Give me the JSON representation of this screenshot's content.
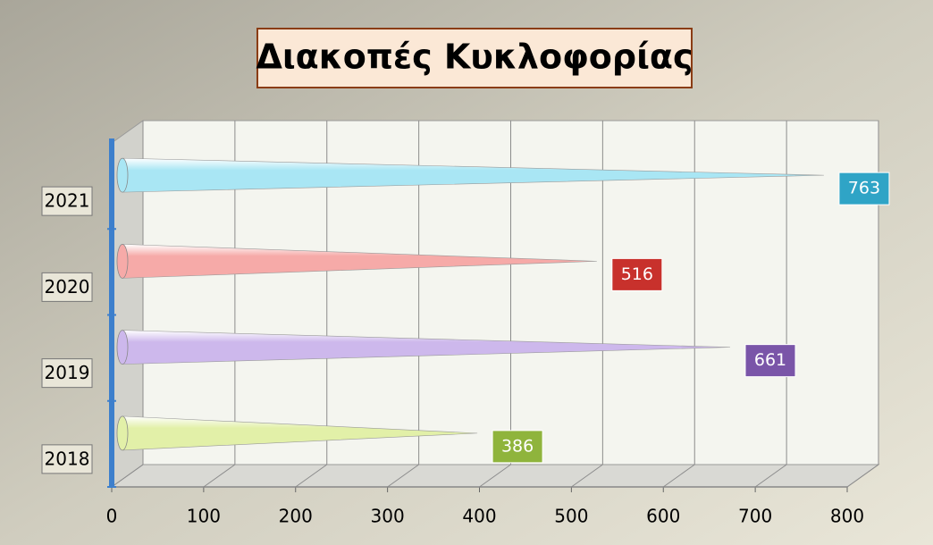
{
  "chart_data": {
    "type": "cone-bar",
    "orientation": "horizontal",
    "title": "Διακοπές Κυκλοφορίας",
    "categories": [
      "2018",
      "2019",
      "2020",
      "2021"
    ],
    "values": [
      386,
      661,
      516,
      763
    ],
    "colors": [
      "#e2f0a8",
      "#cdb8ec",
      "#f6aaa8",
      "#a9e6f4"
    ],
    "label_colors": [
      "#8fb43c",
      "#7a55a8",
      "#c8312c",
      "#2fa4c6"
    ],
    "xlim": [
      0,
      800
    ],
    "xticks": [
      0,
      100,
      200,
      300,
      400,
      500,
      600,
      700,
      800
    ],
    "grid": true
  }
}
